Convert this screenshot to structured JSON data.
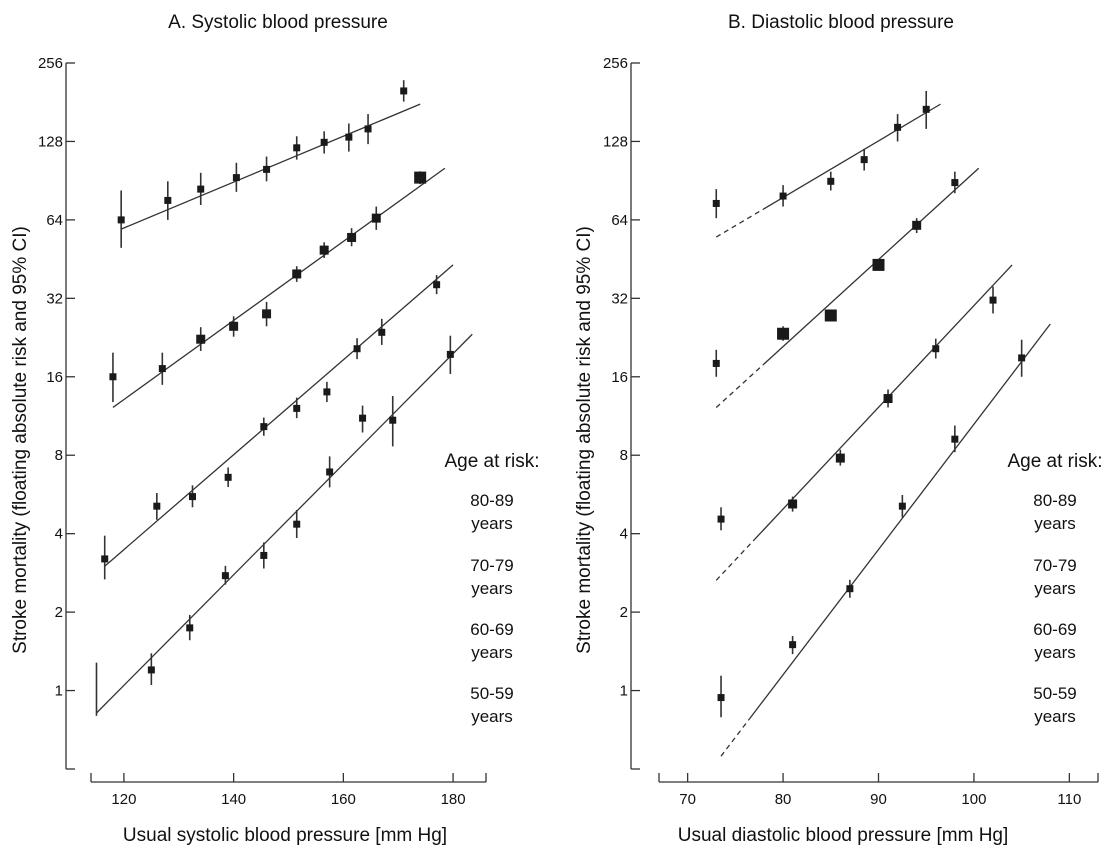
{
  "chart_data": [
    {
      "type": "scatter",
      "title": "A. Systolic blood pressure",
      "xlabel": "Usual systolic blood pressure [mm Hg]",
      "ylabel": "Stroke mortality (floating absolute risk and 95% CI)",
      "y_scale": "log2",
      "xlim": [
        114,
        186
      ],
      "ylim": [
        0.5,
        256
      ],
      "x_ticks": [
        120,
        140,
        160,
        180
      ],
      "y_ticks": [
        1,
        2,
        4,
        8,
        16,
        32,
        64,
        128,
        256
      ],
      "grid": false,
      "legend": {
        "title": "Age at risk:",
        "placement": "right",
        "entries": [
          {
            "line1": "80-89",
            "line2": "years"
          },
          {
            "line1": "70-79",
            "line2": "years"
          },
          {
            "line1": "60-69",
            "line2": "years"
          },
          {
            "line1": "50-59",
            "line2": "years"
          }
        ]
      },
      "series": [
        {
          "name": "80-89 years",
          "fit": {
            "x": [
              119.5,
              174
            ],
            "y": [
              59,
              178
            ]
          },
          "points": [
            {
              "x": 119.5,
              "y": 64,
              "lo": 50,
              "hi": 83,
              "w": 1
            },
            {
              "x": 128,
              "y": 76,
              "lo": 64,
              "hi": 90,
              "w": 1
            },
            {
              "x": 134,
              "y": 84,
              "lo": 73,
              "hi": 97,
              "w": 1
            },
            {
              "x": 140.5,
              "y": 93,
              "lo": 82,
              "hi": 106,
              "w": 1
            },
            {
              "x": 146,
              "y": 100,
              "lo": 90,
              "hi": 112,
              "w": 1
            },
            {
              "x": 151.5,
              "y": 121,
              "lo": 109,
              "hi": 134,
              "w": 1
            },
            {
              "x": 156.5,
              "y": 127,
              "lo": 115,
              "hi": 140,
              "w": 1
            },
            {
              "x": 161,
              "y": 133,
              "lo": 117,
              "hi": 150,
              "w": 1
            },
            {
              "x": 164.5,
              "y": 143,
              "lo": 125,
              "hi": 163,
              "w": 1
            },
            {
              "x": 171,
              "y": 200,
              "lo": 182,
              "hi": 220,
              "w": 1
            }
          ]
        },
        {
          "name": "70-79 years",
          "fit": {
            "x": [
              118,
              178.5
            ],
            "y": [
              12.2,
              101
            ]
          },
          "points": [
            {
              "x": 118,
              "y": 16,
              "lo": 12.8,
              "hi": 19.8,
              "w": 1
            },
            {
              "x": 127,
              "y": 17.2,
              "lo": 14.9,
              "hi": 19.8,
              "w": 1
            },
            {
              "x": 134,
              "y": 22.3,
              "lo": 20.1,
              "hi": 24.8,
              "w": 2
            },
            {
              "x": 140,
              "y": 25,
              "lo": 22.8,
              "hi": 27.3,
              "w": 2
            },
            {
              "x": 146,
              "y": 27.9,
              "lo": 25,
              "hi": 31,
              "w": 2
            },
            {
              "x": 151.5,
              "y": 39.7,
              "lo": 37,
              "hi": 42.5,
              "w": 2
            },
            {
              "x": 156.5,
              "y": 49,
              "lo": 45.7,
              "hi": 52.5,
              "w": 2
            },
            {
              "x": 161.5,
              "y": 54.8,
              "lo": 50.7,
              "hi": 59.5,
              "w": 2
            },
            {
              "x": 166,
              "y": 65,
              "lo": 58.6,
              "hi": 72,
              "w": 2
            },
            {
              "x": 174,
              "y": 93,
              "lo": 87.8,
              "hi": 98.3,
              "w": 3
            }
          ]
        },
        {
          "name": "60-69 years",
          "fit": {
            "x": [
              116.5,
              180
            ],
            "y": [
              3.0,
              43
            ]
          },
          "points": [
            {
              "x": 116.5,
              "y": 3.2,
              "lo": 2.67,
              "hi": 3.93,
              "w": 1
            },
            {
              "x": 126,
              "y": 5.1,
              "lo": 4.52,
              "hi": 5.73,
              "w": 1
            },
            {
              "x": 132.5,
              "y": 5.55,
              "lo": 5.05,
              "hi": 6.13,
              "w": 1
            },
            {
              "x": 139,
              "y": 6.58,
              "lo": 6.04,
              "hi": 7.18,
              "w": 1
            },
            {
              "x": 145.5,
              "y": 10.3,
              "lo": 9.5,
              "hi": 11.16,
              "w": 1
            },
            {
              "x": 151.5,
              "y": 12.1,
              "lo": 11.1,
              "hi": 13.3,
              "w": 1
            },
            {
              "x": 157,
              "y": 14,
              "lo": 12.8,
              "hi": 15.3,
              "w": 1
            },
            {
              "x": 162.5,
              "y": 20.5,
              "lo": 18.7,
              "hi": 22.5,
              "w": 1
            },
            {
              "x": 167,
              "y": 23.7,
              "lo": 21.2,
              "hi": 26.7,
              "w": 1
            },
            {
              "x": 177,
              "y": 36.1,
              "lo": 33.2,
              "hi": 39.3,
              "w": 1
            }
          ]
        },
        {
          "name": "50-59 years",
          "fit": {
            "x": [
              115,
              183.5
            ],
            "y": [
              0.82,
              23.3
            ]
          },
          "points": [
            {
              "x": 115,
              "y": 1.0,
              "lo": 0.8,
              "hi": 1.28,
              "w": 0
            },
            {
              "x": 125,
              "y": 1.2,
              "lo": 1.05,
              "hi": 1.39,
              "w": 1
            },
            {
              "x": 132,
              "y": 1.74,
              "lo": 1.56,
              "hi": 1.95,
              "w": 1
            },
            {
              "x": 138.5,
              "y": 2.76,
              "lo": 2.55,
              "hi": 3.01,
              "w": 1
            },
            {
              "x": 145.5,
              "y": 3.3,
              "lo": 2.94,
              "hi": 3.7,
              "w": 1
            },
            {
              "x": 151.5,
              "y": 4.35,
              "lo": 3.85,
              "hi": 4.93,
              "w": 1
            },
            {
              "x": 157.5,
              "y": 6.9,
              "lo": 6.02,
              "hi": 7.92,
              "w": 1
            },
            {
              "x": 163.5,
              "y": 11.1,
              "lo": 9.78,
              "hi": 12.4,
              "w": 1
            },
            {
              "x": 169,
              "y": 10.9,
              "lo": 8.65,
              "hi": 13.5,
              "w": 1
            },
            {
              "x": 179.5,
              "y": 19.5,
              "lo": 16.4,
              "hi": 23,
              "w": 1
            }
          ]
        }
      ]
    },
    {
      "type": "scatter",
      "title": "B. Diastolic blood pressure",
      "xlabel": "Usual diastolic blood pressure [mm Hg]",
      "ylabel": "Stroke mortality (floating absolute risk and 95% CI)",
      "y_scale": "log2",
      "xlim": [
        67,
        113
      ],
      "ylim": [
        0.5,
        256
      ],
      "x_ticks": [
        70,
        80,
        90,
        100,
        110
      ],
      "y_ticks": [
        1,
        2,
        4,
        8,
        16,
        32,
        64,
        128,
        256
      ],
      "grid": false,
      "legend": {
        "title": "Age at risk:",
        "placement": "right",
        "entries": [
          {
            "line1": "80-89",
            "line2": "years"
          },
          {
            "line1": "70-79",
            "line2": "years"
          },
          {
            "line1": "60-69",
            "line2": "years"
          },
          {
            "line1": "50-59",
            "line2": "years"
          }
        ]
      },
      "series": [
        {
          "name": "80-89 years",
          "fit": {
            "x": [
              73,
              96.5
            ],
            "y": [
              55,
              178
            ]
          },
          "fit_dashed_until": 78,
          "points": [
            {
              "x": 73,
              "y": 74,
              "lo": 65,
              "hi": 84,
              "w": 1
            },
            {
              "x": 80,
              "y": 79,
              "lo": 72,
              "hi": 87,
              "w": 1
            },
            {
              "x": 85,
              "y": 90,
              "lo": 83,
              "hi": 98,
              "w": 1
            },
            {
              "x": 88.5,
              "y": 109,
              "lo": 99,
              "hi": 120,
              "w": 1
            },
            {
              "x": 92,
              "y": 145,
              "lo": 128,
              "hi": 163,
              "w": 1
            },
            {
              "x": 95,
              "y": 170,
              "lo": 143,
              "hi": 200,
              "w": 1
            }
          ]
        },
        {
          "name": "70-79 years",
          "fit": {
            "x": [
              73,
              100.5
            ],
            "y": [
              12.2,
              101
            ]
          },
          "fit_dashed_until": 78,
          "points": [
            {
              "x": 73,
              "y": 18,
              "lo": 16,
              "hi": 20.3,
              "w": 1
            },
            {
              "x": 80,
              "y": 23.4,
              "lo": 22,
              "hi": 25,
              "w": 3
            },
            {
              "x": 85,
              "y": 27.5,
              "lo": 27.5,
              "hi": 27.5,
              "w": 3
            },
            {
              "x": 90,
              "y": 43,
              "lo": 41,
              "hi": 45,
              "w": 3
            },
            {
              "x": 94,
              "y": 61,
              "lo": 57,
              "hi": 65,
              "w": 2
            },
            {
              "x": 98,
              "y": 89,
              "lo": 81,
              "hi": 98,
              "w": 1
            }
          ]
        },
        {
          "name": "60-69 years",
          "fit": {
            "x": [
              73,
              104
            ],
            "y": [
              2.65,
              43
            ]
          },
          "fit_dashed_until": 77,
          "points": [
            {
              "x": 73.5,
              "y": 4.55,
              "lo": 4.12,
              "hi": 5.05,
              "w": 1
            },
            {
              "x": 81,
              "y": 5.2,
              "lo": 4.86,
              "hi": 5.55,
              "w": 2
            },
            {
              "x": 86,
              "y": 7.8,
              "lo": 7.3,
              "hi": 8.4,
              "w": 2
            },
            {
              "x": 91,
              "y": 13.2,
              "lo": 12.2,
              "hi": 14.3,
              "w": 2
            },
            {
              "x": 96,
              "y": 20.5,
              "lo": 18.8,
              "hi": 22.4,
              "w": 1
            },
            {
              "x": 102,
              "y": 31.5,
              "lo": 28,
              "hi": 35.5,
              "w": 1
            }
          ]
        },
        {
          "name": "50-59 years",
          "fit": {
            "x": [
              73.5,
              108
            ],
            "y": [
              0.56,
              25.5
            ]
          },
          "fit_dashed_until": 76.5,
          "points": [
            {
              "x": 73.5,
              "y": 0.94,
              "lo": 0.79,
              "hi": 1.14,
              "w": 1
            },
            {
              "x": 81,
              "y": 1.5,
              "lo": 1.38,
              "hi": 1.62,
              "w": 1
            },
            {
              "x": 87,
              "y": 2.46,
              "lo": 2.27,
              "hi": 2.66,
              "w": 1
            },
            {
              "x": 92.5,
              "y": 5.1,
              "lo": 4.62,
              "hi": 5.63,
              "w": 1
            },
            {
              "x": 98,
              "y": 9.22,
              "lo": 8.22,
              "hi": 10.4,
              "w": 1
            },
            {
              "x": 105,
              "y": 18.9,
              "lo": 16,
              "hi": 22.2,
              "w": 1
            }
          ]
        }
      ]
    }
  ]
}
